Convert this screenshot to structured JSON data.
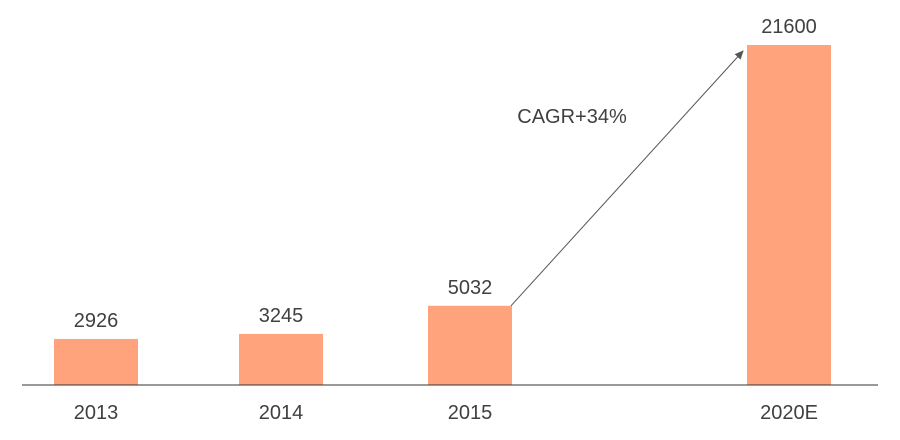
{
  "chart_data": {
    "type": "bar",
    "categories": [
      "2013",
      "2014",
      "2015",
      "2020E"
    ],
    "values": [
      2926,
      3245,
      5032,
      21600
    ],
    "value_labels": [
      "2926",
      "3245",
      "5032",
      "21600"
    ],
    "annotation": {
      "text": "CAGR+34%",
      "from_category": "2015",
      "to_category": "2020E"
    },
    "title": "",
    "xlabel": "",
    "ylabel": "",
    "ylim": [
      0,
      21600
    ],
    "grid": false,
    "legend": "none"
  },
  "colors": {
    "bar": "#FFA37C",
    "axis": "#333333",
    "text": "#404040",
    "arrow": "#555555"
  }
}
